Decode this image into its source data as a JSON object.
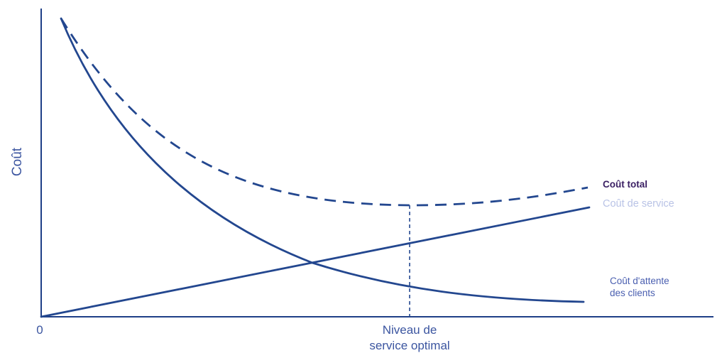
{
  "chart_data": {
    "type": "line",
    "ylabel": "Coût",
    "x_origin_label": "0",
    "optimum_label_line1": "Niveau de",
    "optimum_label_line2": "service optimal",
    "series": [
      {
        "name": "Coût total",
        "style": "dashed",
        "color": "#23478f",
        "label_color": "#3a1f63"
      },
      {
        "name": "Coût de service",
        "style": "solid",
        "color": "#23478f",
        "label_color": "#b9c3e6"
      },
      {
        "name": "Coût d'attente des clients",
        "label_lines": [
          "Coût d'attente",
          "des clients"
        ],
        "style": "solid",
        "color": "#23478f",
        "label_color": "#4a5fb0"
      }
    ],
    "grid": false
  }
}
